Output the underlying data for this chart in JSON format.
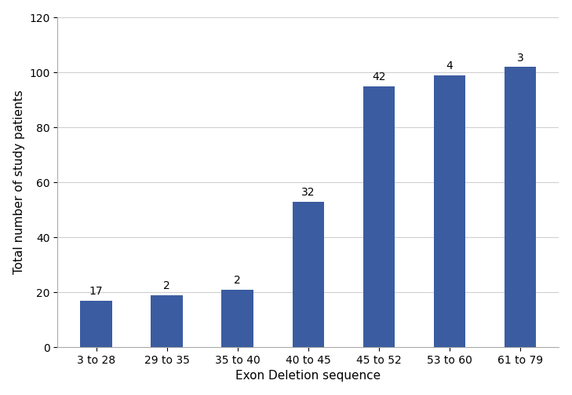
{
  "categories": [
    "3 to 28",
    "29 to 35",
    "35 to 40",
    "40 to 45",
    "45 to 52",
    "53 to 60",
    "61 to 79"
  ],
  "increments": [
    17,
    2,
    2,
    32,
    42,
    4,
    3
  ],
  "cumulative": [
    17,
    19,
    21,
    53,
    95,
    99,
    102
  ],
  "bar_color": "#3B5CA0",
  "xlabel": "Exon Deletion sequence",
  "ylabel": "Total number of study patients",
  "ylim": [
    0,
    120
  ],
  "yticks": [
    0,
    20,
    40,
    60,
    80,
    100,
    120
  ],
  "annotation_fontsize": 10,
  "label_fontsize": 11,
  "tick_fontsize": 10,
  "background_color": "#ffffff",
  "grid_color": "#d0d0d0",
  "bar_width": 0.45
}
